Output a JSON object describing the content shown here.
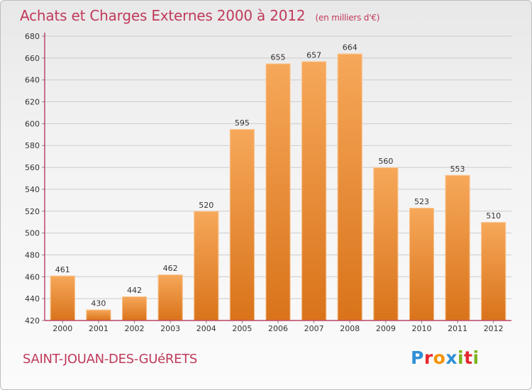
{
  "header": {
    "title": "Achats et Charges Externes 2000 à 2012",
    "subtitle": "(en milliers d'€)"
  },
  "footer": {
    "commune": "SAINT-JOUAN-DES-GUéRETS",
    "logo": {
      "letters": [
        "P",
        "r",
        "o",
        "x",
        "i",
        "t",
        "i"
      ],
      "colors": [
        "#2f8fd6",
        "#e5272d",
        "#f39200",
        "#2f8fd6",
        "#7ab51d",
        "#e5272d",
        "#7ab51d"
      ]
    }
  },
  "colors": {
    "bar_light": "#f6a85a",
    "bar_dark": "#d9731a",
    "axis": "#b0204a",
    "grid": "#cccccc",
    "text": "#333333"
  },
  "chart_data": {
    "type": "bar",
    "title": "Achats et Charges Externes 2000 à 2012",
    "subtitle": "(en milliers d'€)",
    "categories": [
      "2000",
      "2001",
      "2002",
      "2003",
      "2004",
      "2005",
      "2006",
      "2007",
      "2008",
      "2009",
      "2010",
      "2011",
      "2012"
    ],
    "values": [
      461,
      430,
      442,
      462,
      520,
      595,
      655,
      657,
      664,
      560,
      523,
      553,
      510
    ],
    "ylim": [
      420,
      680
    ],
    "yticks": [
      420,
      440,
      460,
      480,
      500,
      520,
      540,
      560,
      580,
      600,
      620,
      640,
      660,
      680
    ],
    "grid": true,
    "legend": "none"
  }
}
